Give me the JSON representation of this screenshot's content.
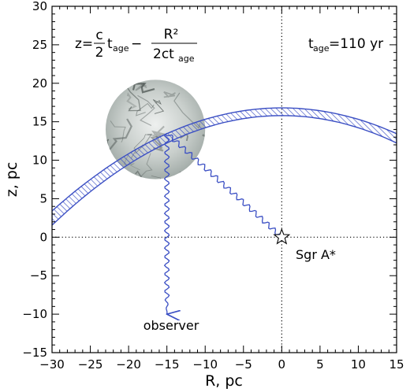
{
  "chart_data": {
    "type": "scatter",
    "xlabel": "R, pc",
    "ylabel": "z, pc",
    "xlim": [
      -30,
      15
    ],
    "ylim": [
      -15,
      30
    ],
    "x_ticks": [
      -30,
      -25,
      -20,
      -15,
      -10,
      -5,
      0,
      5,
      10,
      15
    ],
    "y_ticks": [
      -15,
      -10,
      -5,
      0,
      5,
      10,
      15,
      20,
      25,
      30
    ],
    "equation": {
      "lhs": "z=",
      "frac1_num": "c",
      "frac1_den": "2",
      "t1": "t",
      "t1_sub": "age",
      "minus": "−",
      "frac2_num": "R²",
      "frac2_den_main": "2ct",
      "frac2_den_sub": "age"
    },
    "tage": {
      "t": "t",
      "sub": "age",
      "value": "=110 yr"
    },
    "parabola": {
      "c_over_2_t": 16.8,
      "band_width": 1.0
    },
    "cloud": {
      "center": [
        -16.5,
        14
      ],
      "radius": 6.5
    },
    "source": {
      "label": "Sgr A*",
      "x": 0,
      "y": 0
    },
    "observer": {
      "label": "observer",
      "x": -15,
      "y": -10
    },
    "scatter_point": {
      "x": -15,
      "y": 13.5
    },
    "reference_lines": {
      "x0": 0,
      "y0": 0,
      "style": "dotted"
    },
    "colors": {
      "curve": "#3b4fc4",
      "hatch": "#3b4fc4",
      "cloud_light": "#d8dcda",
      "cloud_dark": "#4a5250",
      "axes": "#000000"
    }
  }
}
